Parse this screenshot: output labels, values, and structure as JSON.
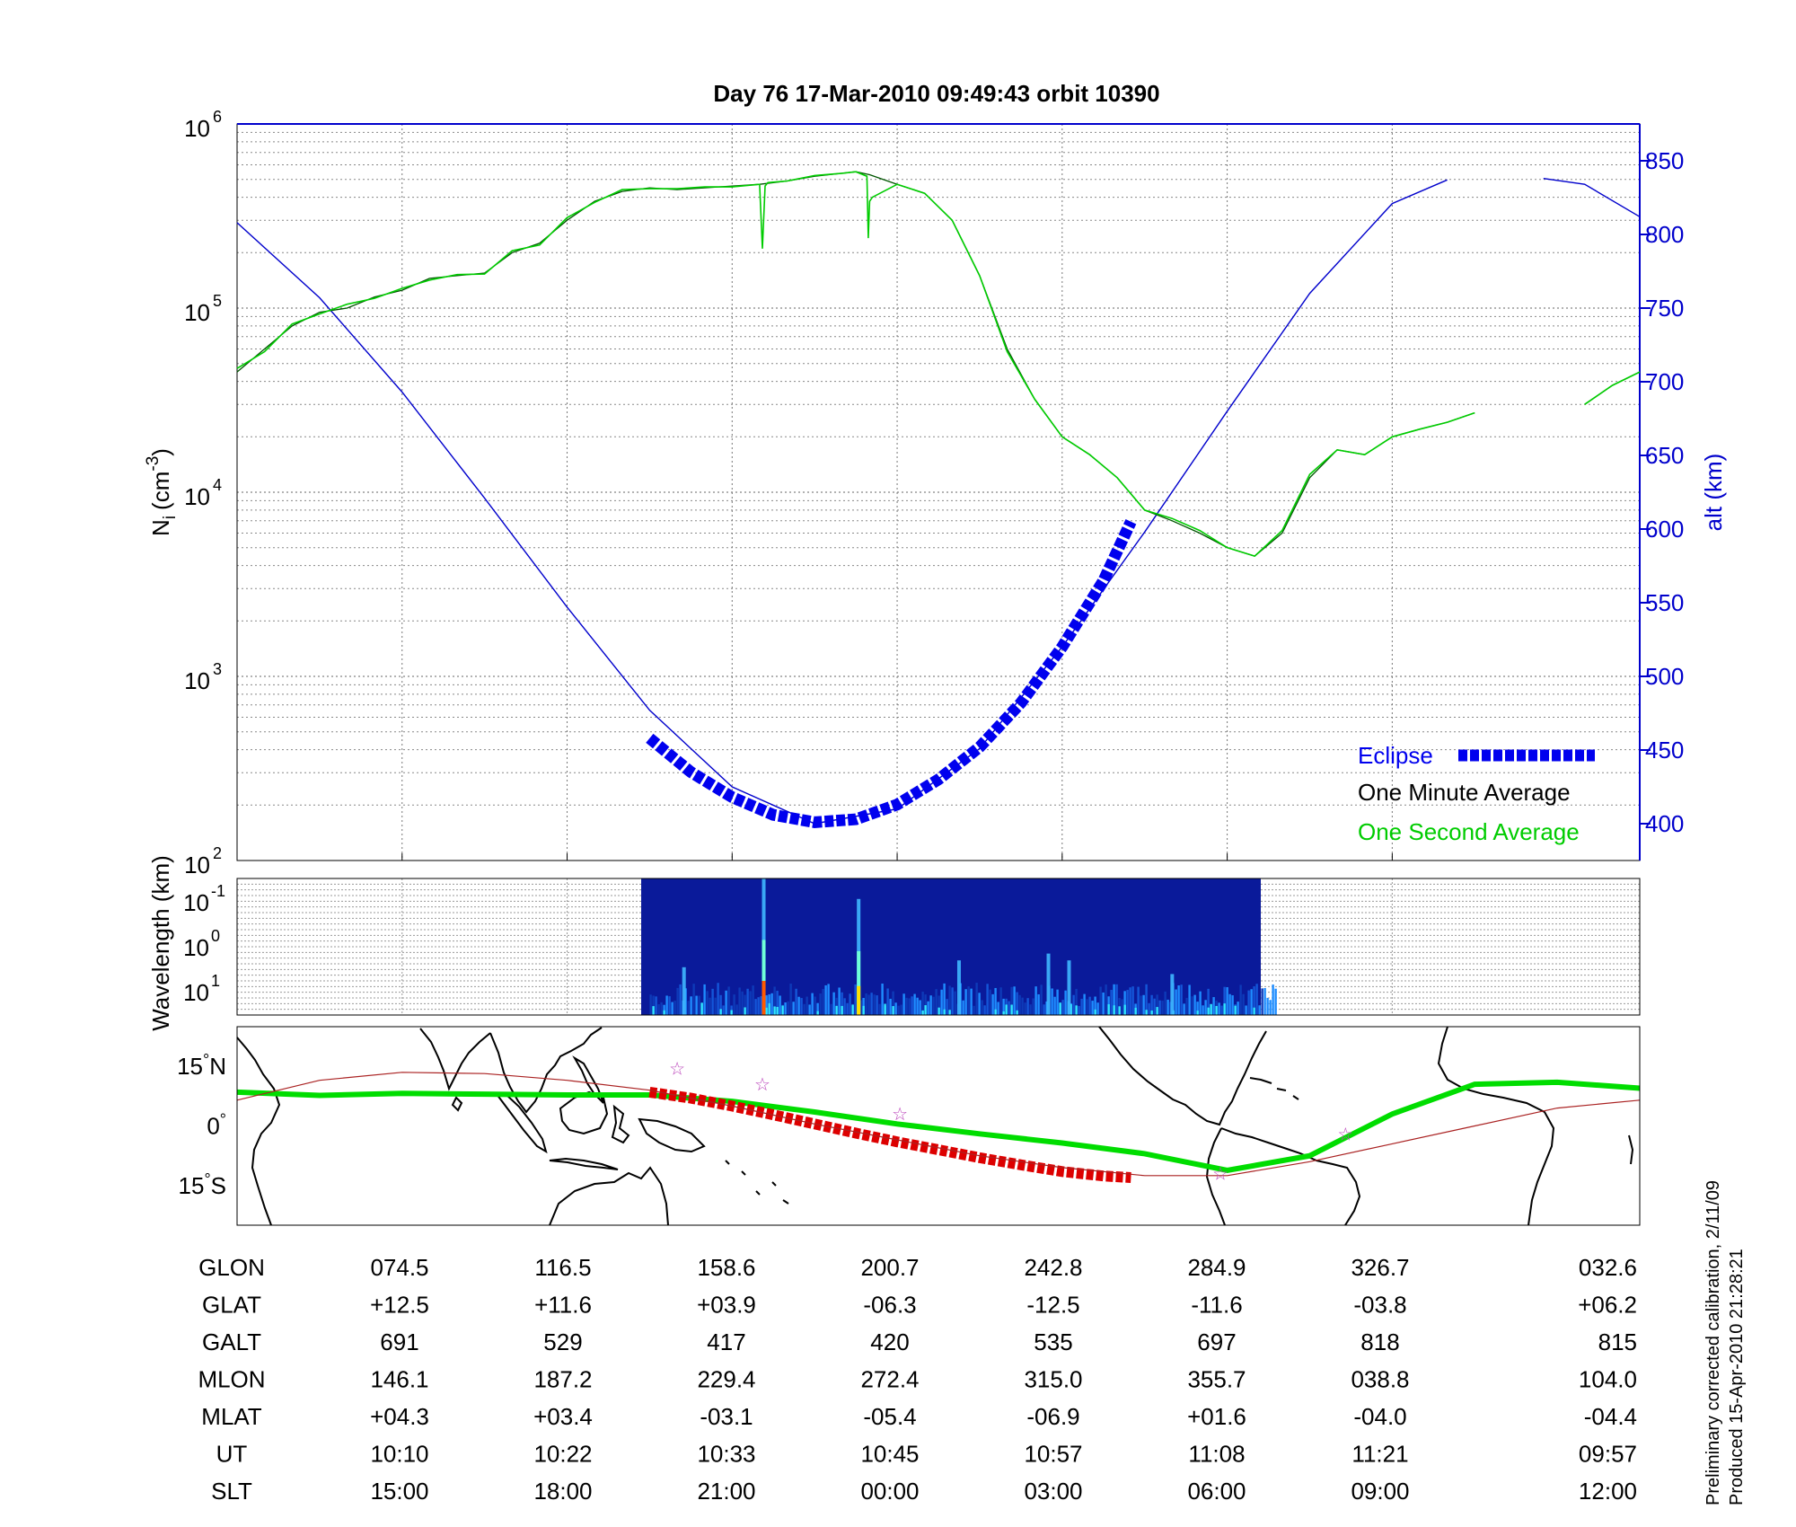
{
  "title": "Day 76  17-Mar-2010 09:49:43   orbit 10390",
  "colors": {
    "alt_line": "#0000cc",
    "eclipse": "#0000ee",
    "minute_avg": "#005500",
    "second_avg": "#00cc00",
    "track": "#00dd00",
    "eclipse_track": "#dd0000",
    "mag_equator": "#aa2222",
    "stars": "#bb44bb",
    "right_axis": "#0000cc"
  },
  "credits": {
    "line1": "Preliminary corrected calibration, 2/11/09",
    "line2": "Produced 15-Apr-2010 21:28:21"
  },
  "table": {
    "rows": [
      {
        "label": "GLON",
        "values": [
          "074.5",
          "116.5",
          "158.6",
          "200.7",
          "242.8",
          "284.9",
          "326.7",
          "032.6"
        ]
      },
      {
        "label": "GLAT",
        "values": [
          "+12.5",
          "+11.6",
          "+03.9",
          "-06.3",
          "-12.5",
          "-11.6",
          "-03.8",
          "+06.2"
        ]
      },
      {
        "label": "GALT",
        "values": [
          "691",
          "529",
          "417",
          "420",
          "535",
          "697",
          "818",
          "815"
        ]
      },
      {
        "label": "MLON",
        "values": [
          "146.1",
          "187.2",
          "229.4",
          "272.4",
          "315.0",
          "355.7",
          "038.8",
          "104.0"
        ]
      },
      {
        "label": "MLAT",
        "values": [
          "+04.3",
          "+03.4",
          "-03.1",
          "-05.4",
          "-06.9",
          "+01.6",
          "-04.0",
          "-04.4"
        ]
      },
      {
        "label": "UT",
        "values": [
          "10:10",
          "10:22",
          "10:33",
          "10:45",
          "10:57",
          "11:08",
          "11:21",
          "09:57"
        ]
      },
      {
        "label": "SLT",
        "values": [
          "15:00",
          "18:00",
          "21:00",
          "00:00",
          "03:00",
          "06:00",
          "09:00",
          "12:00"
        ]
      }
    ]
  },
  "chart_data": [
    {
      "type": "line",
      "panel": "ion density and altitude",
      "x_unit": "minutes since 09:49:43 UT",
      "xlim": [
        0,
        102
      ],
      "x_tick_positions": [
        12,
        24,
        36,
        48,
        60,
        72,
        84
      ],
      "y_left": {
        "label": "N",
        "label_sub": "i",
        "label_unit": "(cm",
        "label_sup": "-3",
        "label_end": ")",
        "scale": "log",
        "lim": [
          100,
          1000000
        ],
        "ticks": [
          {
            "base": "10",
            "exp": "2",
            "value": 100
          },
          {
            "base": "10",
            "exp": "3",
            "value": 1000
          },
          {
            "base": "10",
            "exp": "4",
            "value": 10000
          },
          {
            "base": "10",
            "exp": "5",
            "value": 100000
          },
          {
            "base": "10",
            "exp": "6",
            "value": 1000000
          }
        ]
      },
      "y_right": {
        "label": "alt (km)",
        "lim": [
          375,
          875
        ],
        "ticks": [
          "400",
          "450",
          "500",
          "550",
          "600",
          "650",
          "700",
          "750",
          "800",
          "850"
        ]
      },
      "grid": true,
      "legend": [
        {
          "label": "Eclipse",
          "color": "#0000ee",
          "style": "dashed-thick"
        },
        {
          "label": "One Minute Average",
          "color": "#000000"
        },
        {
          "label": "One Second Average",
          "color": "#00cc00"
        }
      ],
      "legend_position": "bottom-right",
      "series": [
        {
          "name": "alt (km)",
          "axis": "right",
          "x": [
            0,
            6,
            12,
            18,
            24,
            30,
            36,
            42,
            48,
            54,
            60,
            66,
            72,
            78,
            84,
            88,
            90,
            95,
            98,
            102
          ],
          "y": [
            808,
            757,
            693,
            621,
            547,
            477,
            425,
            400,
            410,
            451,
            520,
            598,
            680,
            760,
            821,
            837,
            null,
            838,
            834,
            812
          ]
        },
        {
          "name": "Eclipse",
          "axis": "right",
          "x": [
            30,
            33,
            36,
            39,
            42,
            45,
            48,
            51,
            54,
            57,
            60,
            63,
            65
          ],
          "y": [
            458,
            435,
            418,
            406,
            401,
            403,
            413,
            430,
            452,
            482,
            520,
            565,
            605
          ]
        },
        {
          "name": "One Minute Average",
          "axis": "left",
          "x": [
            0,
            2,
            4,
            6,
            8,
            10,
            12,
            14,
            16,
            18,
            20,
            22,
            24,
            26,
            28,
            30,
            32,
            34,
            36,
            38,
            40,
            42,
            44,
            45,
            46,
            48,
            50,
            52,
            54,
            56,
            58,
            60,
            62,
            64,
            66,
            68,
            70,
            72,
            74,
            76,
            78,
            80,
            82,
            84,
            86,
            88,
            90,
            95,
            98,
            100,
            102
          ],
          "y": [
            45000,
            60000,
            80000,
            95000,
            100000,
            115000,
            125000,
            145000,
            150000,
            155000,
            200000,
            225000,
            300000,
            380000,
            430000,
            450000,
            440000,
            450000,
            460000,
            470000,
            490000,
            520000,
            540000,
            550000,
            530000,
            470000,
            420000,
            300000,
            150000,
            60000,
            32000,
            20000,
            16000,
            12000,
            8000,
            7000,
            6000,
            5000,
            4500,
            6000,
            12000,
            17000,
            16000,
            20000,
            22000,
            24000,
            27000,
            null,
            30000,
            38000,
            45000
          ]
        },
        {
          "name": "One Second Average",
          "axis": "left",
          "x": [
            0,
            2,
            4,
            6,
            8,
            10,
            12,
            14,
            16,
            18,
            20,
            22,
            24,
            26,
            28,
            30,
            32,
            34,
            36,
            38,
            38.2,
            38.4,
            38.6,
            40,
            42,
            44,
            45,
            45.8,
            45.9,
            46.0,
            46.2,
            48,
            50,
            52,
            54,
            56,
            58,
            60,
            62,
            64,
            66,
            68,
            70,
            72,
            74,
            76,
            78,
            80,
            82,
            84,
            86,
            88,
            90,
            95,
            98,
            100,
            102
          ],
          "y": [
            47000,
            58000,
            82000,
            93000,
            105000,
            113000,
            128000,
            142000,
            152000,
            153000,
            205000,
            220000,
            310000,
            375000,
            440000,
            445000,
            445000,
            455000,
            455000,
            470000,
            210000,
            460000,
            480000,
            490000,
            525000,
            540000,
            550000,
            520000,
            240000,
            380000,
            400000,
            470000,
            420000,
            300000,
            150000,
            58000,
            32000,
            20000,
            16000,
            12000,
            8000,
            7200,
            6200,
            5000,
            4500,
            6200,
            12500,
            17000,
            16000,
            20000,
            22000,
            24000,
            27000,
            null,
            30000,
            38000,
            45000
          ]
        }
      ]
    },
    {
      "type": "heatmap",
      "panel": "spectrogram",
      "y_label": "Wavelength (km)",
      "y_ticks": [
        {
          "base": "10",
          "exp": "-1"
        },
        {
          "base": "10",
          "exp": "0"
        },
        {
          "base": "10",
          "exp": "1"
        }
      ],
      "x_data_range": [
        30,
        75.5
      ],
      "bright_features": [
        {
          "x": 38.3,
          "intensity": 1.0
        },
        {
          "x": 45.2,
          "intensity": 0.85
        },
        {
          "x": 32.5,
          "intensity": 0.35
        },
        {
          "x": 52.5,
          "intensity": 0.4
        },
        {
          "x": 59.0,
          "intensity": 0.45
        },
        {
          "x": 60.5,
          "intensity": 0.4
        },
        {
          "x": 68.0,
          "intensity": 0.3
        }
      ]
    },
    {
      "type": "line",
      "panel": "ground track map",
      "y_ticks": [
        {
          "value": "15",
          "unit": "N",
          "lat": 15
        },
        {
          "value": "0",
          "unit": "",
          "lat": 0
        },
        {
          "value": "15",
          "unit": "S",
          "lat": -15
        }
      ],
      "ylim": [
        -25,
        25
      ],
      "series": [
        {
          "name": "track",
          "x": [
            0,
            6,
            12,
            18,
            24,
            30,
            36,
            42,
            48,
            54,
            60,
            66,
            72,
            78,
            84,
            90,
            96,
            102
          ],
          "lat": [
            8.5,
            7.7,
            8.2,
            8.0,
            7.8,
            7.8,
            6.2,
            3.5,
            0.5,
            -2.0,
            -4.3,
            -7.0,
            -11.2,
            -7.5,
            3.0,
            10.5,
            11.0,
            9.5
          ]
        },
        {
          "name": "eclipse track",
          "x": [
            30,
            33,
            36,
            39,
            42,
            45,
            48,
            51,
            54,
            57,
            60,
            63,
            65
          ],
          "lat": [
            8.5,
            7.0,
            5.0,
            2.8,
            0.5,
            -1.8,
            -4.0,
            -6.0,
            -8.0,
            -9.8,
            -11.5,
            -12.6,
            -13.0
          ]
        },
        {
          "name": "magnetic equator",
          "x": [
            0,
            6,
            12,
            18,
            24,
            30,
            36,
            42,
            48,
            54,
            60,
            66,
            72,
            78,
            84,
            90,
            96,
            102
          ],
          "lat": [
            6.5,
            11.5,
            13.5,
            13.2,
            11.5,
            9.0,
            5.0,
            0.5,
            -3.5,
            -7.5,
            -10.5,
            -12.5,
            -12.5,
            -9.0,
            -4.5,
            0.0,
            4.5,
            6.5
          ]
        }
      ],
      "stars": [
        {
          "x": 32.0,
          "lat": 14.5
        },
        {
          "x": 38.2,
          "lat": 10.5
        },
        {
          "x": 48.2,
          "lat": 3.0
        },
        {
          "x": 71.5,
          "lat": -12.0
        },
        {
          "x": 80.6,
          "lat": -2.0
        }
      ]
    }
  ]
}
